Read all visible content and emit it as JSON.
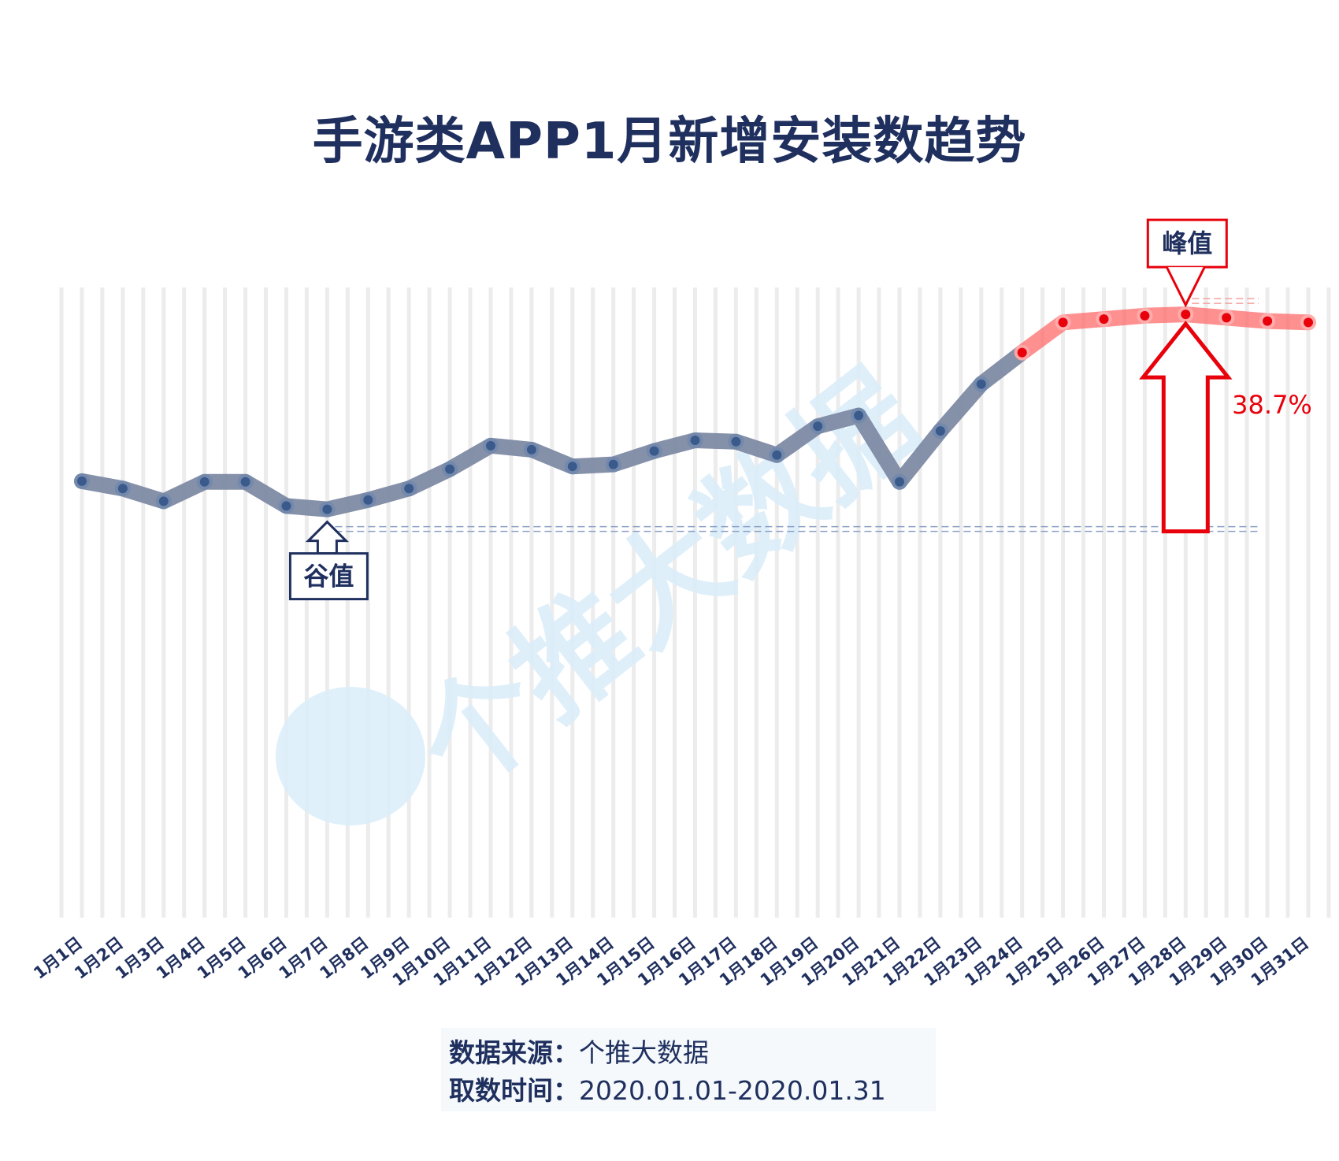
{
  "chart_data": {
    "type": "line",
    "title": "手游类APP1月新增安装数趋势",
    "categories": [
      "1月1日",
      "1月2日",
      "1月3日",
      "1月4日",
      "1月5日",
      "1月6日",
      "1月7日",
      "1月8日",
      "1月9日",
      "1月10日",
      "1月11日",
      "1月12日",
      "1月13日",
      "1月14日",
      "1月15日",
      "1月16日",
      "1月17日",
      "1月18日",
      "1月19日",
      "1月20日",
      "1月21日",
      "1月22日",
      "1月23日",
      "1月24日",
      "1月25日",
      "1月26日",
      "1月27日",
      "1月28日",
      "1月29日",
      "1月30日",
      "1月31日"
    ],
    "values": [
      65.5,
      64.4,
      62.5,
      65.4,
      65.4,
      61.8,
      61.3,
      62.7,
      64.4,
      67.3,
      70.8,
      70.2,
      67.7,
      68.0,
      70.0,
      71.6,
      71.4,
      69.4,
      73.7,
      75.3,
      65.4,
      73.0,
      80.0,
      84.7,
      89.2,
      89.7,
      90.2,
      90.4,
      89.9,
      89.4,
      89.2
    ],
    "highlight_from_index": 23,
    "colors": {
      "line": "#7e8aa4",
      "dot": "#3a5a8c",
      "highlight_line": "#ff6b6b",
      "highlight_dot": "#e8000b",
      "dark": "#1f2f5e",
      "red": "#e8000b",
      "grid": "#ececec"
    },
    "annotations": {
      "trough_label": "谷值",
      "trough_index": 6,
      "peak_label": "峰值",
      "peak_index": 27,
      "growth_label": "38.7%"
    },
    "ylim": [
      0,
      95
    ],
    "grid": "vertical-bars"
  },
  "watermark": "个推大数据",
  "source": {
    "source_label": "数据来源：",
    "source_value": "个推大数据",
    "period_label": "取数时间：",
    "period_value": "2020.01.01-2020.01.31"
  }
}
